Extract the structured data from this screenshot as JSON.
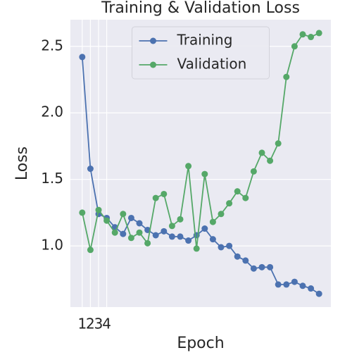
{
  "chart_data": {
    "type": "line",
    "title": "Training & Validation Loss",
    "xlabel": "Epoch",
    "ylabel": "Loss",
    "x": [
      1,
      2,
      3,
      4,
      5,
      6,
      7,
      8,
      9,
      10,
      11,
      12,
      13,
      14,
      15,
      16,
      17,
      18,
      19,
      20,
      21,
      22,
      23,
      24,
      25,
      26,
      27,
      28,
      29,
      30
    ],
    "series": [
      {
        "name": "Training",
        "color": "#4c72b0",
        "values": [
          2.42,
          1.58,
          1.24,
          1.21,
          1.14,
          1.09,
          1.21,
          1.17,
          1.12,
          1.08,
          1.11,
          1.07,
          1.07,
          1.04,
          1.08,
          1.13,
          1.05,
          0.99,
          1.0,
          0.92,
          0.89,
          0.83,
          0.84,
          0.84,
          0.71,
          0.71,
          0.73,
          0.7,
          0.68,
          0.64
        ]
      },
      {
        "name": "Validation",
        "color": "#55a868",
        "values": [
          1.25,
          0.97,
          1.27,
          1.19,
          1.1,
          1.24,
          1.06,
          1.1,
          1.02,
          1.36,
          1.39,
          1.15,
          1.2,
          1.6,
          0.98,
          1.54,
          1.18,
          1.24,
          1.32,
          1.41,
          1.36,
          1.56,
          1.7,
          1.64,
          1.77,
          2.27,
          2.5,
          2.59,
          2.57,
          2.6
        ]
      }
    ],
    "xlim": [
      -0.45,
      31.45
    ],
    "xticks": [
      1,
      2,
      3,
      4
    ],
    "ylim": [
      0.54,
      2.7
    ],
    "yticks": [
      {
        "value": 1,
        "label": "1.0"
      },
      {
        "value": 1.5,
        "label": "1.5"
      },
      {
        "value": 2,
        "label": "2.0"
      },
      {
        "value": 2.5,
        "label": "2.5"
      }
    ],
    "grid": true,
    "legend": "upper center"
  }
}
